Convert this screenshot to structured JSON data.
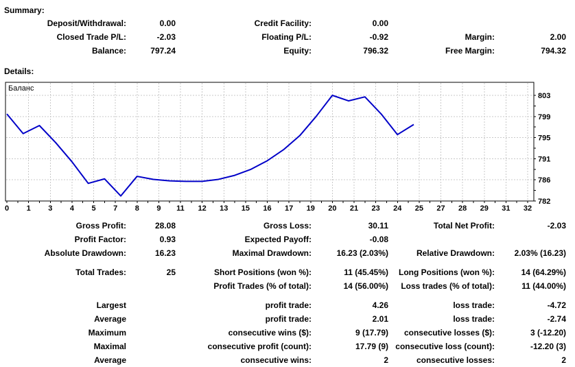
{
  "headings": {
    "summary": "Summary:",
    "details": "Details:"
  },
  "summary": {
    "rows": [
      {
        "l1": "Deposit/Withdrawal:",
        "v1": "0.00",
        "l2": "Credit Facility:",
        "v2": "0.00",
        "l3": "",
        "v3": ""
      },
      {
        "l1": "Closed Trade P/L:",
        "v1": "-2.03",
        "l2": "Floating P/L:",
        "v2": "-0.92",
        "l3": "Margin:",
        "v3": "2.00"
      },
      {
        "l1": "Balance:",
        "v1": "797.24",
        "l2": "Equity:",
        "v2": "796.32",
        "l3": "Free Margin:",
        "v3": "794.32"
      }
    ]
  },
  "details": {
    "rows": [
      {
        "l1": "Gross Profit:",
        "v1": "28.08",
        "l2": "Gross Loss:",
        "v2": "30.11",
        "l3": "Total Net Profit:",
        "v3": "-2.03"
      },
      {
        "l1": "Profit Factor:",
        "v1": "0.93",
        "l2": "Expected Payoff:",
        "v2": "-0.08",
        "l3": "",
        "v3": ""
      },
      {
        "l1": "Absolute Drawdown:",
        "v1": "16.23",
        "l2": "Maximal Drawdown:",
        "v2": "16.23 (2.03%)",
        "l3": "Relative Drawdown:",
        "v3": "2.03% (16.23)"
      },
      {
        "l1": "Total Trades:",
        "v1": "25",
        "l2": "Short Positions (won %):",
        "v2": "11 (45.45%)",
        "l3": "Long Positions (won %):",
        "v3": "14 (64.29%)"
      },
      {
        "l1": "",
        "v1": "",
        "l2": "Profit Trades (% of total):",
        "v2": "14 (56.00%)",
        "l3": "Loss trades (% of total):",
        "v3": "11 (44.00%)"
      },
      {
        "l1": "Largest",
        "v1": "",
        "l2": "profit trade:",
        "v2": "4.26",
        "l3": "loss trade:",
        "v3": "-4.72"
      },
      {
        "l1": "Average",
        "v1": "",
        "l2": "profit trade:",
        "v2": "2.01",
        "l3": "loss trade:",
        "v3": "-2.74"
      },
      {
        "l1": "Maximum",
        "v1": "",
        "l2": "consecutive wins ($):",
        "v2": "9 (17.79)",
        "l3": "consecutive losses ($):",
        "v3": "3 (-12.20)"
      },
      {
        "l1": "Maximal",
        "v1": "",
        "l2": "consecutive profit (count):",
        "v2": "17.79 (9)",
        "l3": "consecutive loss (count):",
        "v3": "-12.20 (3)"
      },
      {
        "l1": "Average",
        "v1": "",
        "l2": "consecutive wins:",
        "v2": "2",
        "l3": "consecutive losses:",
        "v3": "2"
      }
    ]
  },
  "chart_data": {
    "type": "line",
    "title": "Баланс",
    "legend_label": "Баланс",
    "series": [
      {
        "name": "Баланс",
        "x": [
          0,
          1,
          2,
          3,
          4,
          5,
          6,
          7,
          8,
          9,
          10,
          11,
          12,
          13,
          14,
          15,
          16,
          17,
          18,
          19,
          20,
          21,
          22,
          23,
          24,
          25
        ],
        "values": [
          799.3,
          795.4,
          797.0,
          793.6,
          789.8,
          785.5,
          786.4,
          783.0,
          786.9,
          786.3,
          786.0,
          785.9,
          785.9,
          786.3,
          787.1,
          788.3,
          790.0,
          792.2,
          795.0,
          798.8,
          803.0,
          801.9,
          802.7,
          799.3,
          795.2,
          797.2
        ]
      }
    ],
    "x_axis_labels": [
      0,
      1,
      3,
      4,
      5,
      7,
      8,
      9,
      11,
      12,
      13,
      15,
      16,
      17,
      19,
      20,
      21,
      23,
      24,
      25,
      27,
      28,
      29,
      31,
      32
    ],
    "y_axis_labels": [
      803,
      799,
      795,
      791,
      786,
      782
    ],
    "xlim": [
      0,
      32
    ],
    "ylim": [
      782,
      803
    ],
    "grid": true,
    "legend_position": "top-left",
    "line_color": "#0000c8",
    "grid_color": "#c8c8c8",
    "border_color": "#000000"
  }
}
